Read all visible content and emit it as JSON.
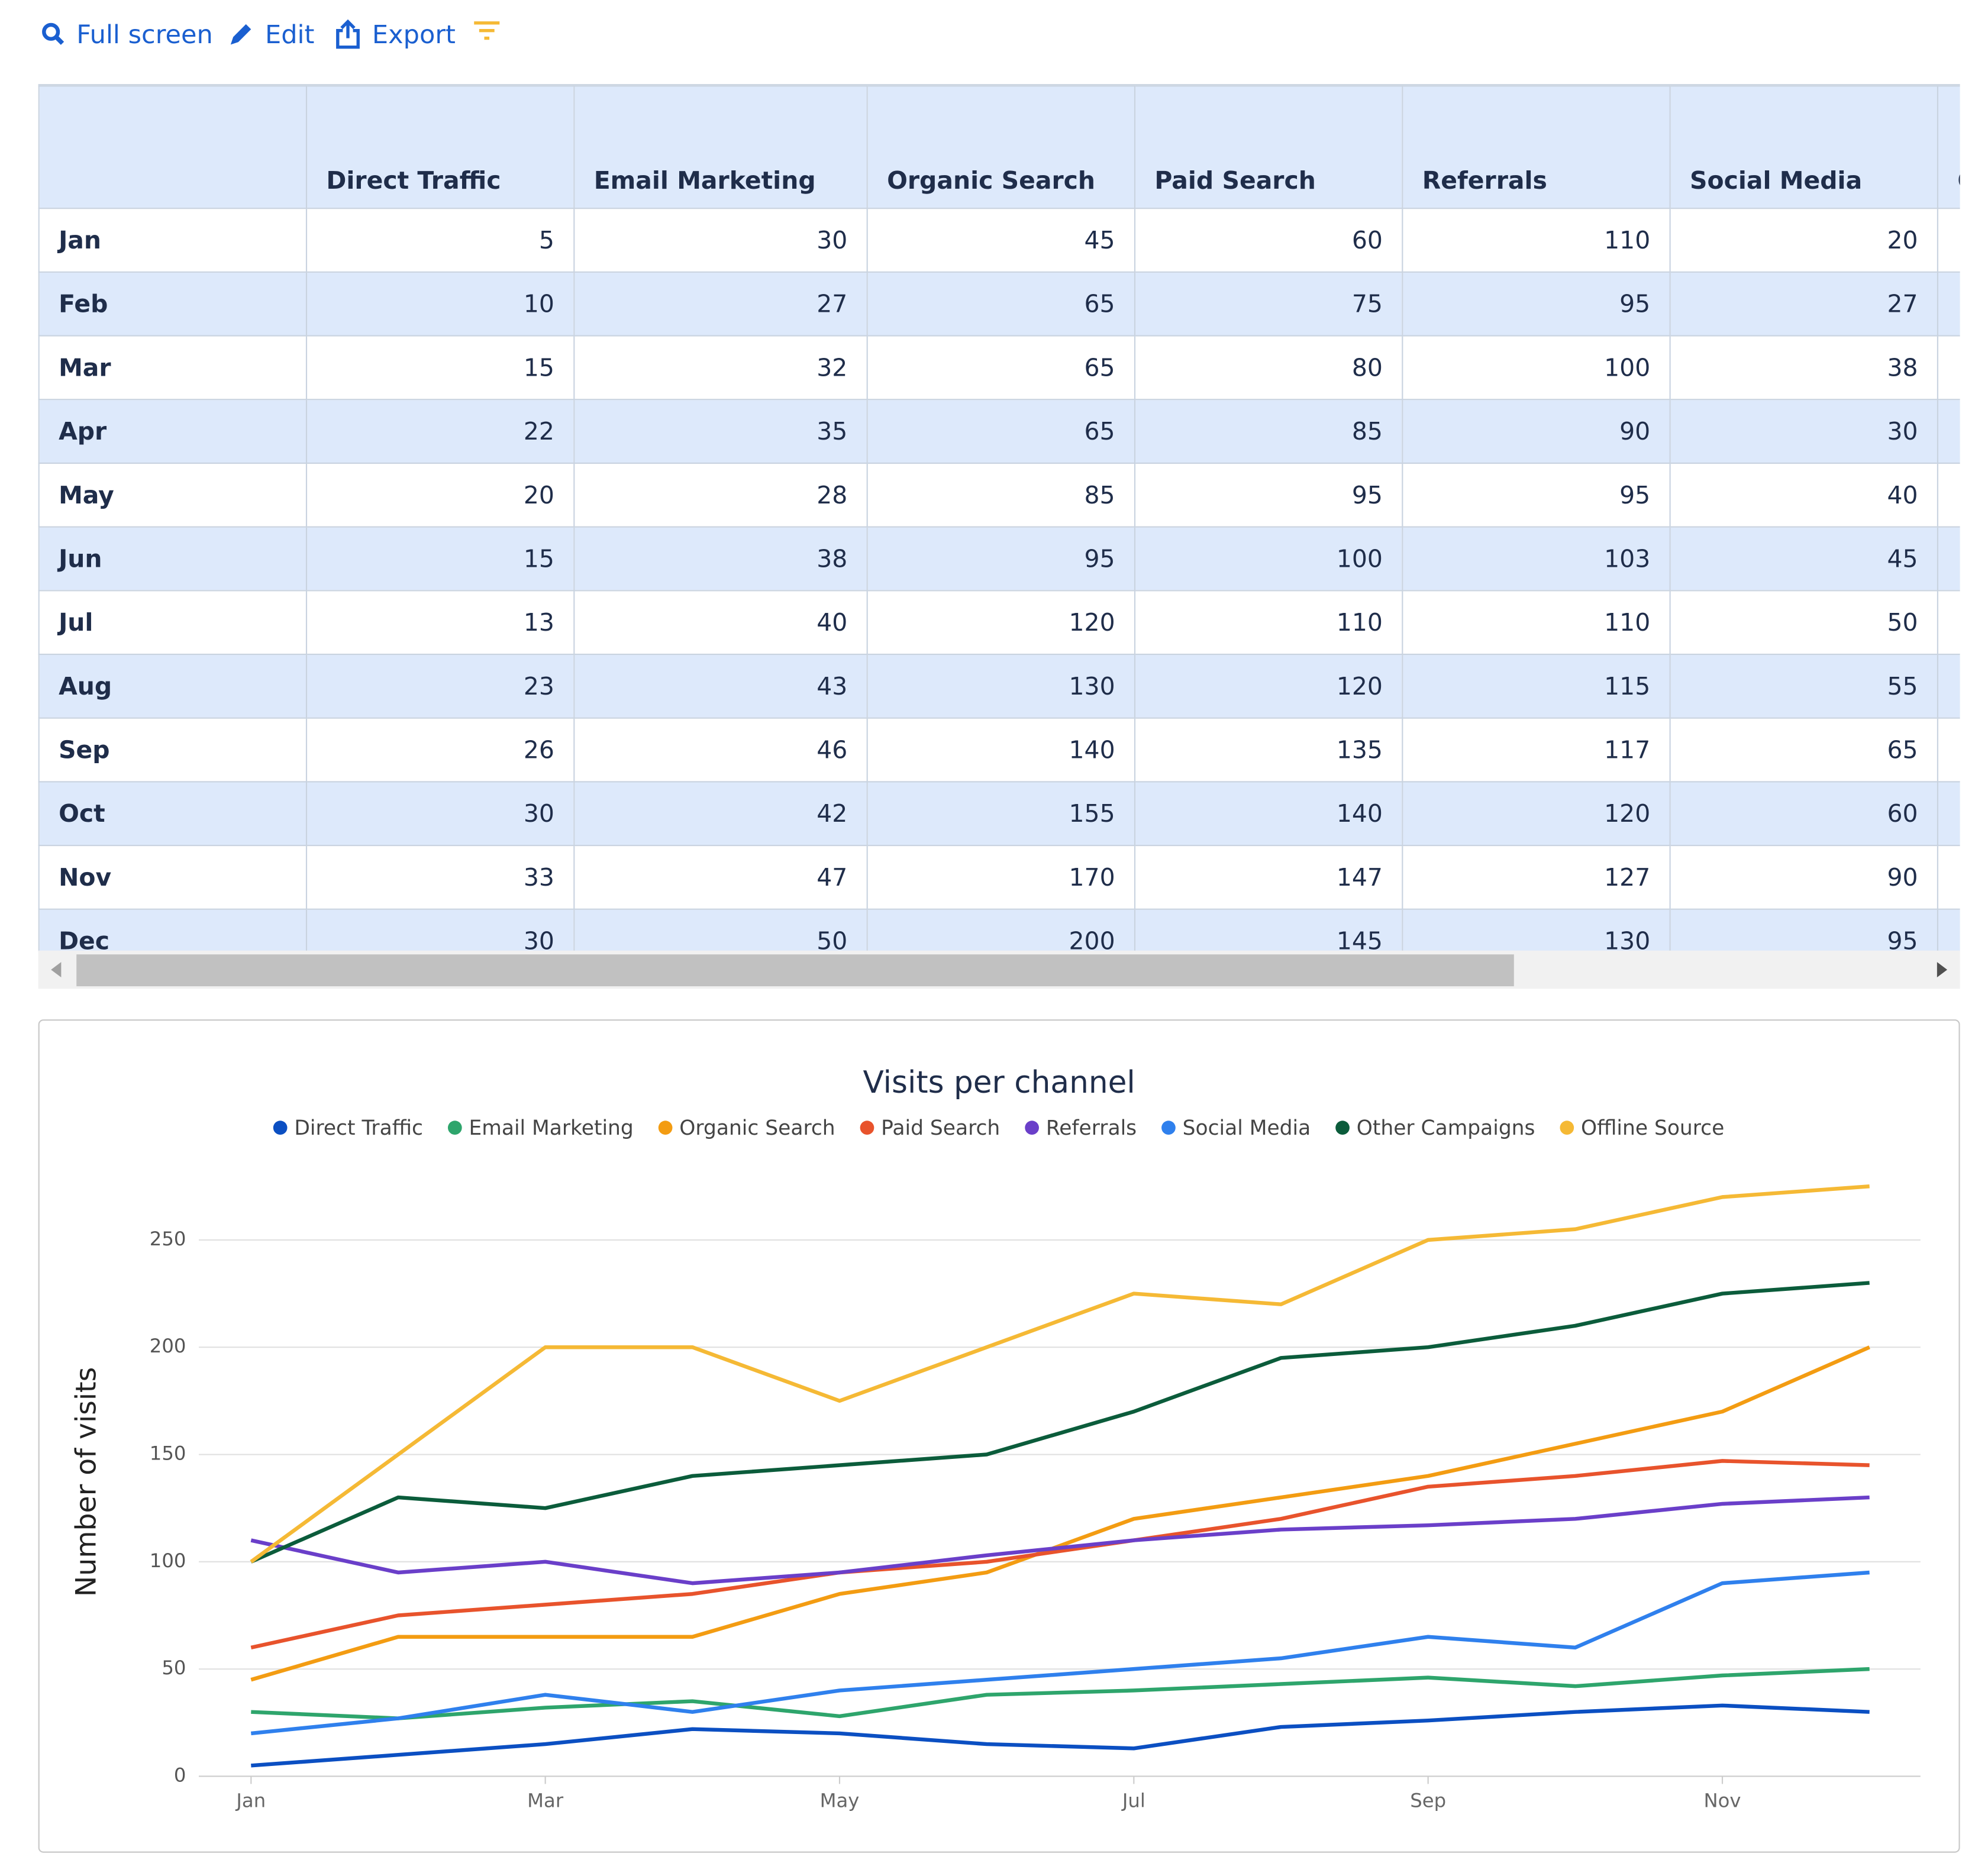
{
  "toolbar": {
    "items": [
      "Full screen",
      "Edit",
      "Export"
    ]
  },
  "table": {
    "row_labels": [
      "Jan",
      "Feb",
      "Mar",
      "Apr",
      "May",
      "Jun",
      "Jul",
      "Aug",
      "Sep",
      "Oct",
      "Nov",
      "Dec"
    ]
  },
  "chart_data": {
    "type": "line",
    "title": "Visits per channel",
    "y_label": "Number of visits",
    "categories": [
      "Jan",
      null,
      "Mar",
      null,
      "May",
      null,
      "Jul",
      null,
      "Sep",
      null,
      "Nov",
      null
    ],
    "ylim": [
      0,
      275
    ],
    "yticks": [
      0,
      50,
      100,
      150,
      200,
      250
    ],
    "grid": true,
    "legend": "top",
    "series": [
      {
        "name": "Direct Traffic",
        "color": "#0b4fc2",
        "values": [
          5,
          10,
          15,
          22,
          20,
          15,
          13,
          23,
          26,
          30,
          33,
          30
        ]
      },
      {
        "name": "Email Marketing",
        "color": "#2ea56c",
        "values": [
          30,
          27,
          32,
          35,
          28,
          38,
          40,
          43,
          46,
          42,
          47,
          50
        ]
      },
      {
        "name": "Organic Search",
        "color": "#f39c12",
        "values": [
          45,
          65,
          65,
          65,
          85,
          95,
          120,
          130,
          140,
          155,
          170,
          200
        ]
      },
      {
        "name": "Paid Search",
        "color": "#e8532c",
        "values": [
          60,
          75,
          80,
          85,
          95,
          100,
          110,
          120,
          135,
          140,
          147,
          145
        ]
      },
      {
        "name": "Referrals",
        "color": "#6a3fc9",
        "values": [
          110,
          95,
          100,
          90,
          95,
          103,
          110,
          115,
          117,
          120,
          127,
          130
        ]
      },
      {
        "name": "Social Media",
        "color": "#2f80ed",
        "values": [
          20,
          27,
          38,
          30,
          40,
          45,
          50,
          55,
          65,
          60,
          90,
          95
        ]
      },
      {
        "name": "Other Campaigns",
        "color": "#0b5c3b",
        "values": [
          100,
          130,
          125,
          140,
          145,
          150,
          170,
          195,
          200,
          210,
          225,
          230
        ]
      },
      {
        "name": "Offline Source",
        "color": "#f5b935",
        "values": [
          100,
          150,
          200,
          200,
          175,
          200,
          225,
          220,
          250,
          255,
          270,
          275
        ]
      }
    ]
  }
}
